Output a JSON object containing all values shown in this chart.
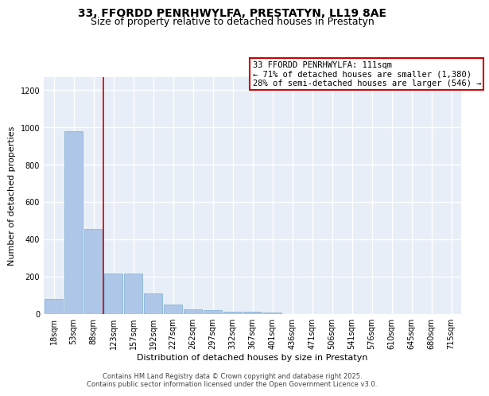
{
  "title1": "33, FFORDD PENRHWYLFA, PRESTATYN, LL19 8AE",
  "title2": "Size of property relative to detached houses in Prestatyn",
  "xlabel": "Distribution of detached houses by size in Prestatyn",
  "ylabel": "Number of detached properties",
  "bar_labels": [
    "18sqm",
    "53sqm",
    "88sqm",
    "123sqm",
    "157sqm",
    "192sqm",
    "227sqm",
    "262sqm",
    "297sqm",
    "332sqm",
    "367sqm",
    "401sqm",
    "436sqm",
    "471sqm",
    "506sqm",
    "541sqm",
    "576sqm",
    "610sqm",
    "645sqm",
    "680sqm",
    "715sqm"
  ],
  "bar_values": [
    80,
    980,
    455,
    215,
    215,
    110,
    50,
    25,
    20,
    10,
    10,
    5,
    0,
    0,
    0,
    0,
    0,
    0,
    0,
    0,
    0
  ],
  "bar_color": "#aec6e8",
  "bar_edgecolor": "#7bafd4",
  "vline_x": 2.5,
  "vline_color": "#cc0000",
  "annotation_text": "33 FFORDD PENRHWYLFA: 111sqm\n← 71% of detached houses are smaller (1,380)\n28% of semi-detached houses are larger (546) →",
  "ylim": [
    0,
    1270
  ],
  "background_color": "#e8eef7",
  "grid_color": "#c8d4e8",
  "footer1": "Contains HM Land Registry data © Crown copyright and database right 2025.",
  "footer2": "Contains public sector information licensed under the Open Government Licence v3.0.",
  "title1_fontsize": 10,
  "title2_fontsize": 9,
  "xlabel_fontsize": 8,
  "ylabel_fontsize": 8,
  "tick_fontsize": 7,
  "annotation_fontsize": 7.5
}
